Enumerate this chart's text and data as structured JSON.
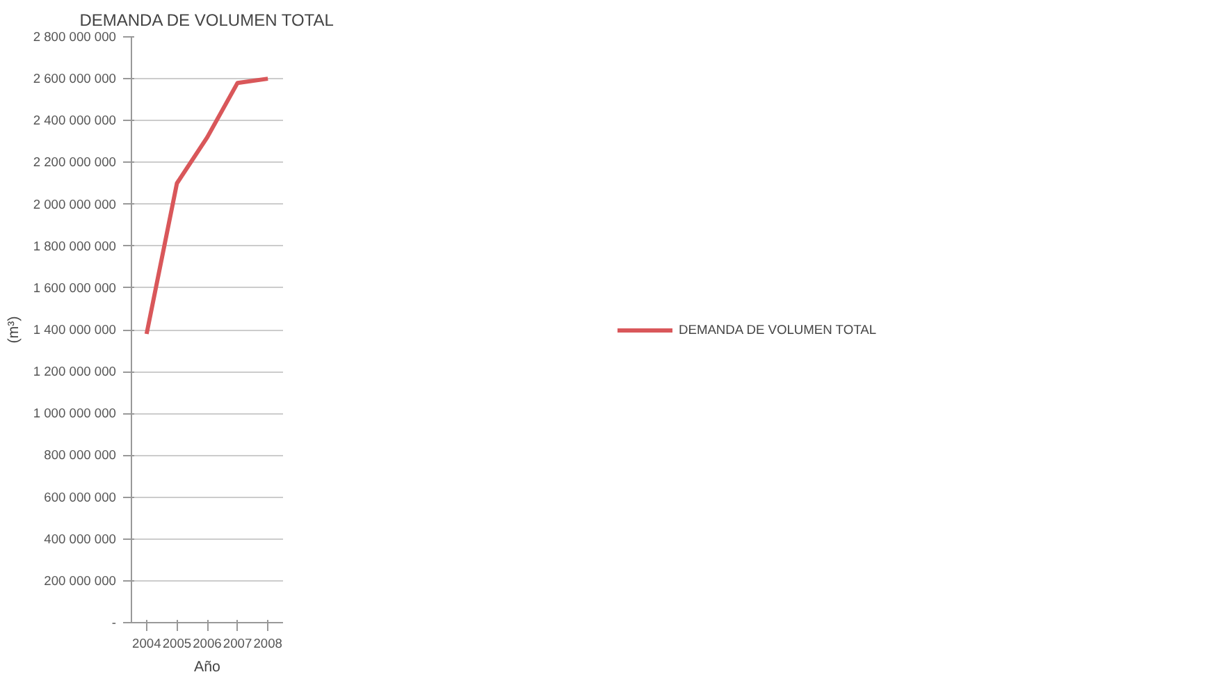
{
  "chart_data": {
    "type": "line",
    "title": "DEMANDA DE VOLUMEN TOTAL",
    "xlabel": "Año",
    "ylabel": "(m³)",
    "categories": [
      "2004",
      "2005",
      "2006",
      "2007",
      "2008"
    ],
    "series": [
      {
        "name": "DEMANDA DE VOLUMEN TOTAL",
        "color": "#d9575a",
        "values": [
          1380000000,
          2100000000,
          2320000000,
          2580000000,
          2600000000
        ]
      }
    ],
    "ylim": [
      0,
      2800000000
    ],
    "yticks": [
      {
        "value": 0,
        "label": "-"
      },
      {
        "value": 200000000,
        "label": "200 000 000"
      },
      {
        "value": 400000000,
        "label": "400 000 000"
      },
      {
        "value": 600000000,
        "label": "600 000 000"
      },
      {
        "value": 800000000,
        "label": "800 000 000"
      },
      {
        "value": 1000000000,
        "label": "1 000 000 000"
      },
      {
        "value": 1200000000,
        "label": "1 200 000 000"
      },
      {
        "value": 1400000000,
        "label": "1 400 000 000"
      },
      {
        "value": 1600000000,
        "label": "1 600 000 000"
      },
      {
        "value": 1800000000,
        "label": "1 800 000 000"
      },
      {
        "value": 2000000000,
        "label": "2 000 000 000"
      },
      {
        "value": 2200000000,
        "label": "2 200 000 000"
      },
      {
        "value": 2400000000,
        "label": "2 400 000 000"
      },
      {
        "value": 2600000000,
        "label": "2 600 000 000"
      },
      {
        "value": 2800000000,
        "label": "2 800 000 000"
      }
    ],
    "grid": "y",
    "legend": "right",
    "marker": "none",
    "line_style": "solid"
  }
}
